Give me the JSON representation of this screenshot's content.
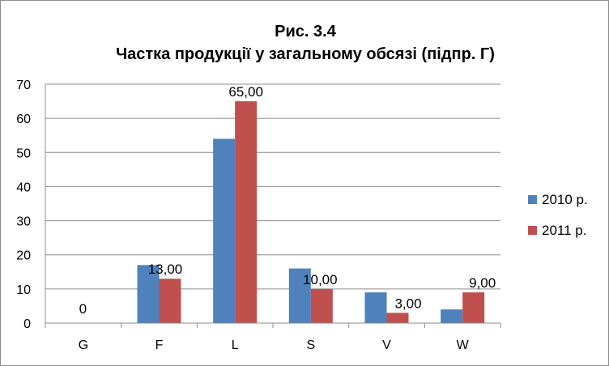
{
  "chart_data": {
    "type": "bar",
    "title": "Рис. 3.4",
    "subtitle": "Частка продукції у загальному обсязі (підпр. Г)",
    "categories": [
      "G",
      "F",
      "L",
      "S",
      "V",
      "W"
    ],
    "series": [
      {
        "name": "2010 р.",
        "color": "#4f81bd",
        "values": [
          0,
          17,
          54,
          16,
          9,
          4
        ],
        "data_labels": [
          null,
          null,
          null,
          null,
          null,
          null
        ]
      },
      {
        "name": "2011 р.",
        "color": "#c0504d",
        "values": [
          0,
          13,
          65,
          10,
          3,
          9
        ],
        "data_labels": [
          "0",
          "13,00",
          "65,00",
          "10,00",
          "3,00",
          "9,00"
        ]
      }
    ],
    "ylim": [
      0,
      70
    ],
    "yticks": [
      "0",
      "10",
      "20",
      "30",
      "40",
      "50",
      "60",
      "70"
    ],
    "grid": true,
    "legend": "right",
    "xlabel": "",
    "ylabel": ""
  }
}
